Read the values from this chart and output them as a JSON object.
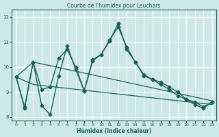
{
  "title": "Courbe de l'humidex pour Leuchars",
  "xlabel": "Humidex (Indice chaleur)",
  "bg_color": "#cde8e5",
  "grid_color": "#ffffff",
  "line_color": "#1a5f5a",
  "xlim": [
    -0.5,
    23.5
  ],
  "ylim": [
    7.85,
    12.3
  ],
  "yticks": [
    8,
    9,
    10,
    11,
    12
  ],
  "xticks": [
    0,
    1,
    2,
    3,
    4,
    5,
    6,
    7,
    8,
    9,
    10,
    11,
    12,
    13,
    14,
    15,
    16,
    17,
    18,
    19,
    20,
    21,
    22,
    23
  ],
  "series": [
    {
      "x": [
        0,
        1,
        2,
        3,
        4,
        5,
        6,
        7,
        8,
        9,
        10,
        11,
        12,
        13,
        14,
        15,
        16,
        17,
        18,
        19,
        20,
        21,
        22,
        23
      ],
      "y": [
        9.6,
        8.4,
        10.2,
        9.1,
        9.2,
        10.35,
        10.7,
        10.0,
        9.05,
        10.25,
        10.5,
        11.1,
        11.6,
        10.8,
        10.2,
        9.7,
        9.5,
        9.4,
        9.2,
        9.0,
        8.7,
        8.6,
        8.4,
        8.6
      ],
      "marker": "D",
      "markersize": 2.5,
      "linewidth": 1.0
    },
    {
      "x": [
        0,
        1,
        2,
        3,
        4,
        5,
        6,
        7,
        8,
        9,
        10,
        11,
        12,
        13,
        14,
        15,
        16,
        17,
        18,
        19,
        20,
        21,
        22,
        23
      ],
      "y": [
        9.6,
        8.35,
        10.2,
        8.45,
        8.1,
        9.65,
        10.85,
        9.9,
        9.05,
        10.3,
        10.5,
        11.05,
        11.75,
        10.7,
        10.2,
        9.65,
        9.5,
        9.3,
        9.1,
        8.85,
        8.7,
        8.5,
        8.35,
        8.6
      ],
      "marker": "D",
      "markersize": 2.5,
      "linewidth": 1.0
    },
    {
      "x": [
        0,
        2,
        23
      ],
      "y": [
        9.6,
        10.2,
        8.65
      ],
      "marker": null,
      "linewidth": 0.9
    },
    {
      "x": [
        0,
        2,
        23
      ],
      "y": [
        9.6,
        9.3,
        8.5
      ],
      "marker": null,
      "linewidth": 0.9
    }
  ]
}
